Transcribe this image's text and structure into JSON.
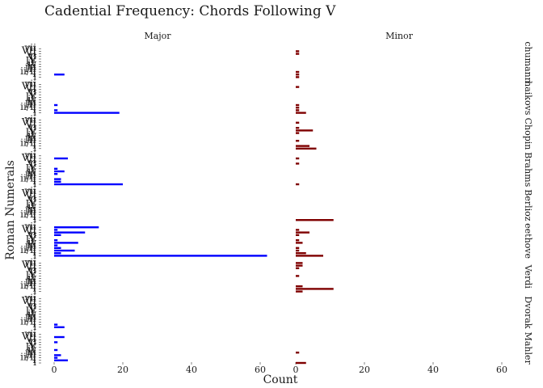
{
  "chart_data": {
    "type": "bar",
    "orientation": "horizontal",
    "title": "Cadential Frequency: Chords Following V",
    "xlabel": "Count",
    "ylabel": "Roman Numerals",
    "xlim": [
      0,
      60
    ],
    "x_ticks": [
      0,
      20,
      40,
      60
    ],
    "grid": false,
    "columns": [
      "Major",
      "Minor"
    ],
    "column_colors": [
      "#0000ff",
      "#7f0000"
    ],
    "rows": [
      "Schumann",
      "Tchaikovsky",
      "Chopin",
      "Brahms",
      "Berlioz",
      "Beethoven",
      "Verdi",
      "Dvorak",
      "Mahler"
    ],
    "row_labels": [
      "chumann",
      "haikovs",
      "Chopin",
      "Brahms",
      "Berlioz",
      "eethove",
      "Verdi",
      "Dvorak",
      "Mahler"
    ],
    "categories": [
      "vii",
      "VII",
      "VI",
      "vi",
      "V",
      "IV",
      "iv",
      "iii",
      "III",
      "ii/Ⅱ",
      "I",
      "i"
    ],
    "panels": [
      {
        "row": "Schumann",
        "column": "Major",
        "values": [
          0,
          0,
          0,
          0,
          0,
          0,
          0,
          0,
          0,
          0,
          3,
          0
        ]
      },
      {
        "row": "Schumann",
        "column": "Minor",
        "values": [
          0,
          1,
          1,
          0,
          0,
          0,
          0,
          0,
          0,
          1,
          1,
          1
        ]
      },
      {
        "row": "Tchaikovsky",
        "column": "Major",
        "values": [
          0,
          0,
          0,
          0,
          0,
          0,
          0,
          0,
          1,
          0,
          1,
          19
        ]
      },
      {
        "row": "Tchaikovsky",
        "column": "Minor",
        "values": [
          0,
          1,
          0,
          0,
          0,
          0,
          0,
          0,
          1,
          1,
          1,
          3
        ]
      },
      {
        "row": "Chopin",
        "column": "Major",
        "values": [
          0,
          0,
          0,
          0,
          0,
          0,
          0,
          0,
          0,
          0,
          0,
          0
        ]
      },
      {
        "row": "Chopin",
        "column": "Minor",
        "values": [
          0,
          1,
          0,
          1,
          5,
          1,
          0,
          0,
          1,
          0,
          4,
          6
        ]
      },
      {
        "row": "Brahms",
        "column": "Major",
        "values": [
          0,
          4,
          0,
          0,
          0,
          1,
          3,
          1,
          0,
          2,
          2,
          20
        ]
      },
      {
        "row": "Brahms",
        "column": "Minor",
        "values": [
          0,
          1,
          0,
          1,
          0,
          0,
          0,
          0,
          0,
          0,
          0,
          1
        ]
      },
      {
        "row": "Berlioz",
        "column": "Major",
        "values": [
          0,
          0,
          0,
          0,
          0,
          0,
          0,
          0,
          0,
          0,
          0,
          0
        ]
      },
      {
        "row": "Berlioz",
        "column": "Minor",
        "values": [
          0,
          0,
          0,
          0,
          0,
          0,
          0,
          0,
          0,
          0,
          0,
          11
        ]
      },
      {
        "row": "Beethoven",
        "column": "Major",
        "values": [
          13,
          1,
          9,
          2,
          0,
          1,
          7,
          1,
          2,
          6,
          2,
          62
        ]
      },
      {
        "row": "Beethoven",
        "column": "Minor",
        "values": [
          0,
          1,
          4,
          1,
          0,
          1,
          2,
          0,
          1,
          1,
          3,
          8
        ]
      },
      {
        "row": "Verdi",
        "column": "Major",
        "values": [
          0,
          0,
          0,
          0,
          0,
          0,
          0,
          0,
          0,
          0,
          0,
          0
        ]
      },
      {
        "row": "Verdi",
        "column": "Minor",
        "values": [
          2,
          2,
          1,
          0,
          0,
          1,
          0,
          0,
          0,
          2,
          11,
          2
        ]
      },
      {
        "row": "Dvorak",
        "column": "Major",
        "values": [
          0,
          0,
          0,
          0,
          0,
          0,
          0,
          0,
          0,
          0,
          1,
          3
        ]
      },
      {
        "row": "Dvorak",
        "column": "Minor",
        "values": [
          0,
          0,
          0,
          0,
          0,
          0,
          0,
          0,
          0,
          0,
          0,
          0
        ]
      },
      {
        "row": "Mahler",
        "column": "Major",
        "values": [
          0,
          3,
          0,
          1,
          0,
          0,
          1,
          0,
          2,
          1,
          4,
          0
        ]
      },
      {
        "row": "Mahler",
        "column": "Minor",
        "values": [
          0,
          0,
          0,
          0,
          0,
          0,
          0,
          1,
          0,
          0,
          0,
          3
        ]
      }
    ]
  }
}
